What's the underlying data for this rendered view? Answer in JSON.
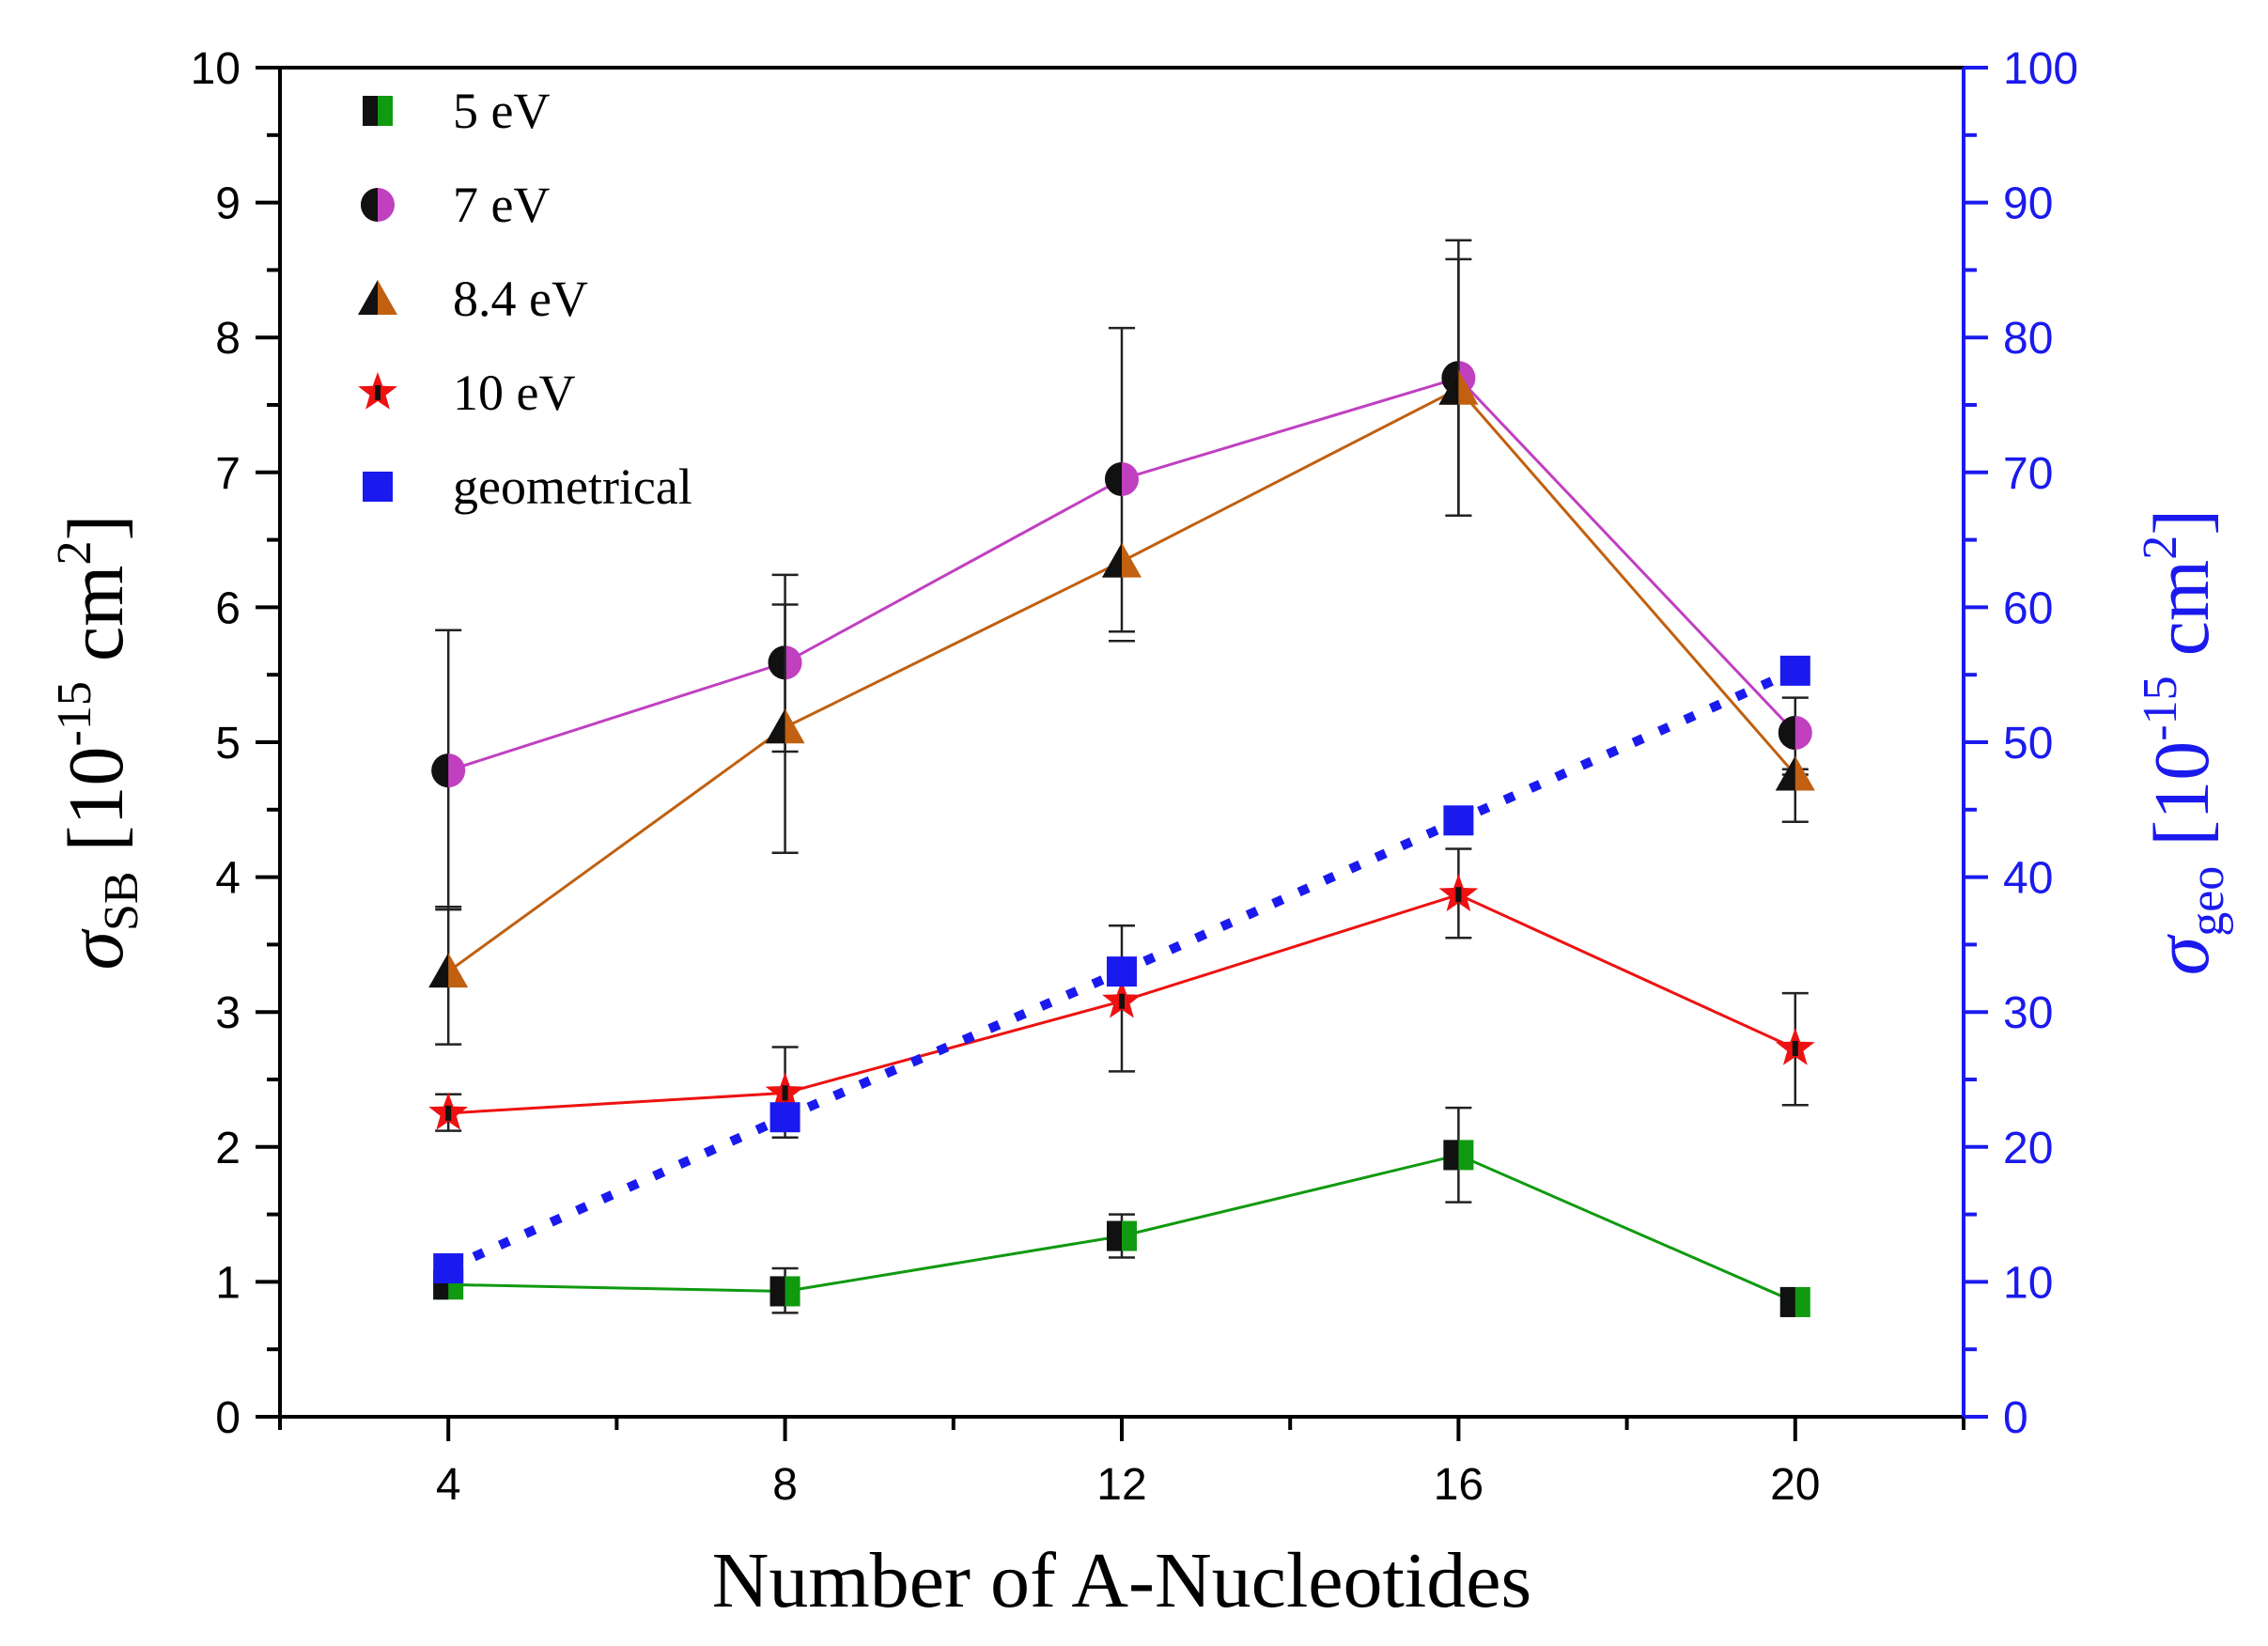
{
  "chart_data": {
    "type": "line",
    "xlabel": "Number of A-Nucleotides",
    "ylabel": {
      "symbol": "σ",
      "sub": "SB",
      "unit_pre": "[10",
      "exp": "-15",
      "unit_mid": " cm",
      "sq": "2",
      "unit_post": "]"
    },
    "y2label": {
      "symbol": "σ",
      "sub": "geo",
      "unit_pre": "[10",
      "exp": "-15",
      "unit_mid": " cm",
      "sq": "2",
      "unit_post": "]"
    },
    "xlim": [
      2,
      22
    ],
    "xticks": [
      4,
      8,
      12,
      16,
      20
    ],
    "ylim": [
      0,
      10
    ],
    "yticks": [
      0,
      1,
      2,
      3,
      4,
      5,
      6,
      7,
      8,
      9,
      10
    ],
    "y2lim": [
      0,
      100
    ],
    "y2ticks": [
      0,
      10,
      20,
      30,
      40,
      50,
      60,
      70,
      80,
      90,
      100
    ],
    "grid": false,
    "legend_position": "top-left",
    "x": [
      4,
      8,
      12,
      16,
      20
    ],
    "series": [
      {
        "name": "5 eV",
        "color": "#109a10",
        "marker": "square",
        "axis": "left",
        "values": [
          0.98,
          0.93,
          1.34,
          1.94,
          0.85
        ],
        "err": [
          [
            0.98,
            0.98
          ],
          [
            0.77,
            1.1
          ],
          [
            1.18,
            1.5
          ],
          [
            1.59,
            2.29
          ],
          [
            0.85,
            0.85
          ]
        ]
      },
      {
        "name": "7 eV",
        "color": "#c040c0",
        "marker": "circle",
        "axis": "left",
        "values": [
          4.79,
          5.59,
          6.95,
          7.7,
          5.07
        ],
        "err": [
          [
            3.76,
            5.83
          ],
          [
            4.93,
            6.24
          ],
          [
            5.82,
            8.07
          ],
          [
            6.68,
            8.72
          ],
          [
            4.8,
            5.33
          ]
        ]
      },
      {
        "name": "8.4 eV",
        "color": "#c06010",
        "marker": "triangle",
        "axis": "left",
        "values": [
          3.3,
          5.11,
          6.34,
          7.62,
          4.76
        ],
        "err": [
          [
            2.76,
            3.78
          ],
          [
            4.18,
            6.02
          ],
          [
            5.75,
            5.75
          ],
          [
            6.68,
            8.58
          ],
          [
            4.41,
            4.76
          ]
        ]
      },
      {
        "name": "10 eV",
        "color": "#ee1111",
        "marker": "star",
        "axis": "left",
        "values": [
          2.25,
          2.4,
          3.08,
          3.87,
          2.73
        ],
        "err": [
          [
            2.12,
            2.39
          ],
          [
            2.07,
            2.74
          ],
          [
            2.56,
            3.64
          ],
          [
            3.55,
            4.21
          ],
          [
            2.31,
            3.14
          ]
        ]
      },
      {
        "name": "geometrical",
        "color": "#1a1aee",
        "marker": "square",
        "axis": "right",
        "line": "dotted",
        "values": [
          11.0,
          22.2,
          33.0,
          44.2,
          55.3
        ]
      }
    ]
  }
}
